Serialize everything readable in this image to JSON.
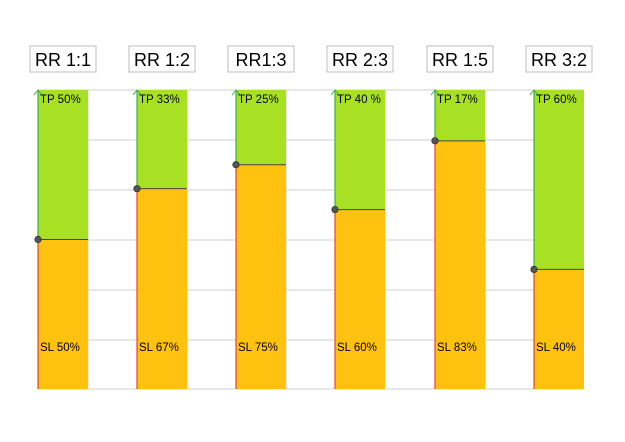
{
  "chart_data": {
    "type": "bar",
    "grid": true,
    "ylim": [
      0,
      100
    ],
    "colors": {
      "tp": "#a8e023",
      "sl": "#ffc20e",
      "grid": "#d0d0d0",
      "stop_line": "#e8433a",
      "target_line": "#3cb04a",
      "marker": "#555555"
    },
    "columns": [
      {
        "title": "RR 1:1",
        "tp": 50,
        "sl": 50,
        "tp_label": "TP 50%",
        "sl_label": "SL 50%"
      },
      {
        "title": "RR 1:2",
        "tp": 33,
        "sl": 67,
        "tp_label": "TP 33%",
        "sl_label": "SL 67%"
      },
      {
        "title": "RR1:3",
        "tp": 25,
        "sl": 75,
        "tp_label": "TP 25%",
        "sl_label": "SL 75%"
      },
      {
        "title": "RR 2:3",
        "tp": 40,
        "sl": 60,
        "tp_label": "TP 40 %",
        "sl_label": "SL 60%"
      },
      {
        "title": "RR 1:5",
        "tp": 17,
        "sl": 83,
        "tp_label": "TP 17%",
        "sl_label": "SL 83%"
      },
      {
        "title": "RR 3:2",
        "tp": 60,
        "sl": 40,
        "tp_label": "TP 60%",
        "sl_label": "SL 40%"
      }
    ]
  }
}
